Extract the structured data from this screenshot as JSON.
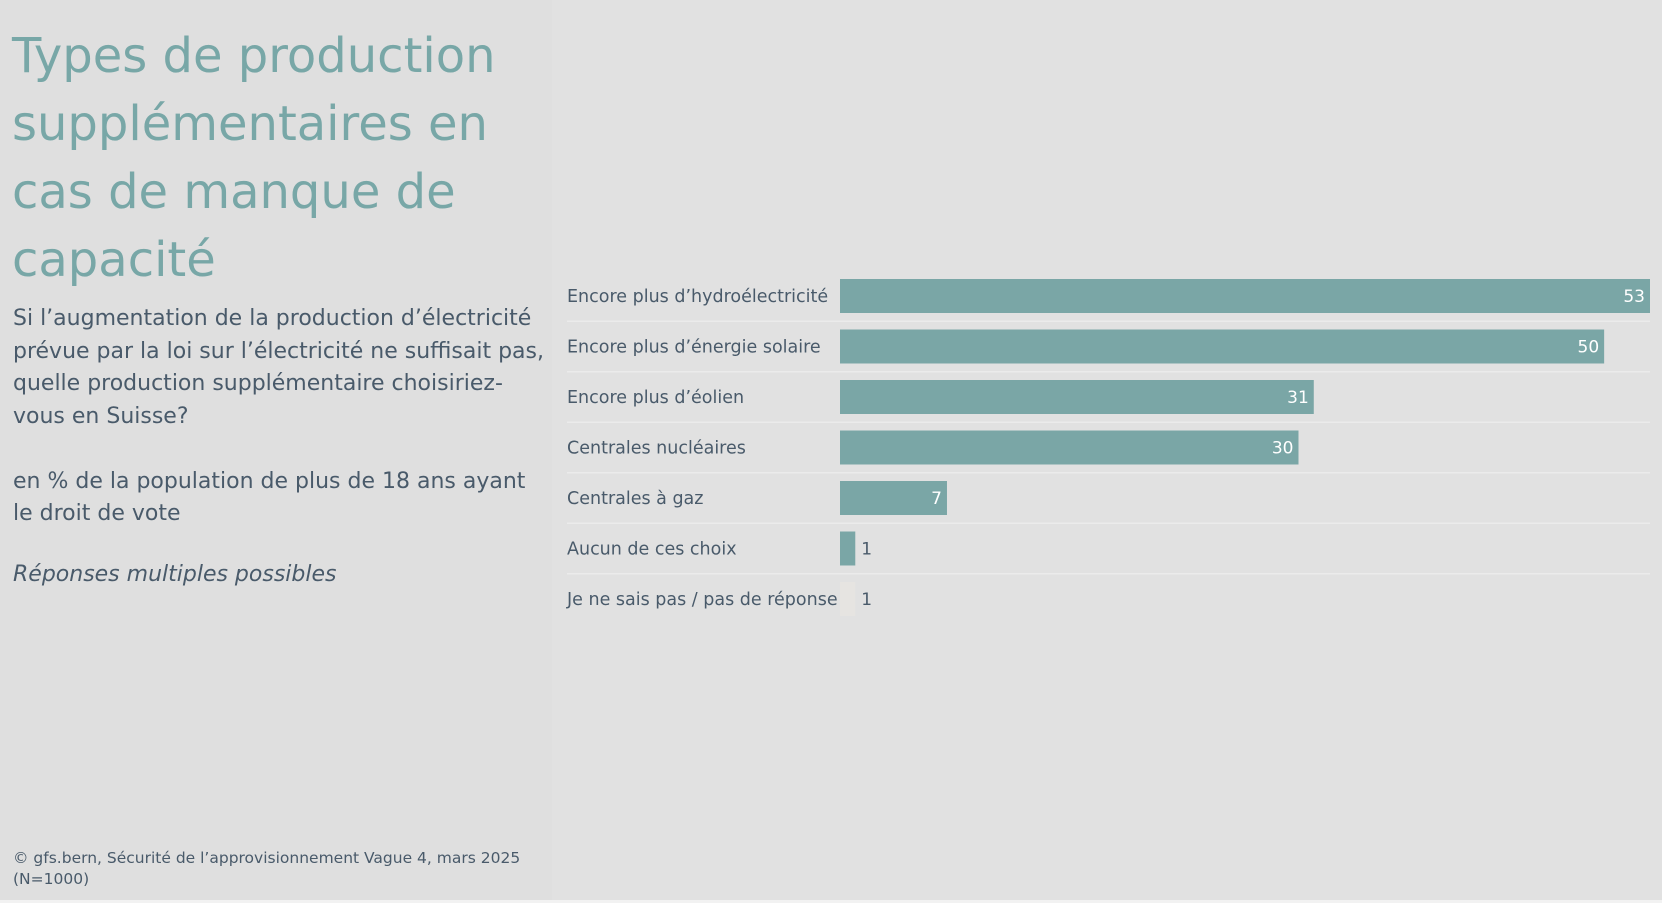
{
  "left": {
    "title": "Types de production supplémentaires en cas de manque de capacité",
    "question": "Si l’augmentation de la production d’électricité prévue par la loi sur l’électricité ne suffisait pas, quelle production supplémentaire choisiriez-vous en Suisse?",
    "population": "en % de la population de plus de 18 ans ayant le droit de vote",
    "multiple": "Réponses multiples possibles",
    "source": "© gfs.bern, Sécurité de l’approvisionnement Vague 4, mars 2025 (N=1000)"
  },
  "colors": {
    "bar": "#7aa6a6",
    "bar_light": "#e6e4e1",
    "label": "#495a6a",
    "separator": "#ebebeb"
  },
  "chart_data": {
    "type": "bar",
    "orientation": "horizontal",
    "title": "Types de production supplémentaires en cas de manque de capacité",
    "unit": "%",
    "categories": [
      "Encore plus d’hydroélectricité",
      "Encore plus d’énergie solaire",
      "Encore plus d’éolien",
      "Centrales nucléaires",
      "Centrales à gaz",
      "Aucun de ces choix",
      "Je ne sais pas / pas de réponse"
    ],
    "values": [
      53,
      50,
      31,
      30,
      7,
      1,
      1
    ],
    "xlim": [
      0,
      53
    ],
    "grid": false
  }
}
